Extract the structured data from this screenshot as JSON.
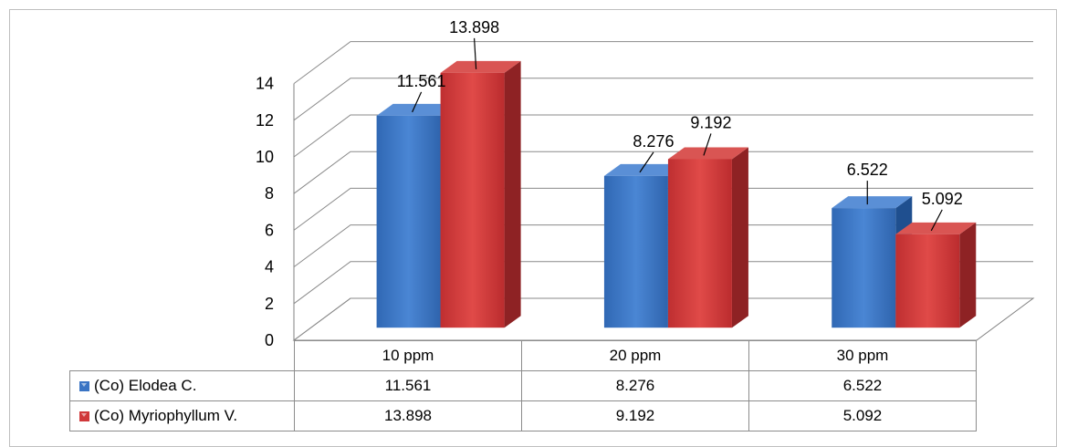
{
  "chart_data": {
    "type": "bar",
    "style": "3d-clustered-column-with-data-table",
    "categories": [
      "10 ppm",
      "20 ppm",
      "30 ppm"
    ],
    "series": [
      {
        "name": "(Co) Elodea C.",
        "values": [
          11.561,
          8.276,
          6.522
        ],
        "color": "#3a74c4"
      },
      {
        "name": "(Co) Myriophyllum V.",
        "values": [
          13.898,
          9.192,
          5.092
        ],
        "color": "#d0383a"
      }
    ],
    "data_labels": [
      [
        "11.561",
        "8.276",
        "6.522"
      ],
      [
        "13.898",
        "9.192",
        "5.092"
      ]
    ],
    "ylim": [
      0,
      14
    ],
    "yticks": [
      0,
      2,
      4,
      6,
      8,
      10,
      12,
      14
    ],
    "grid": true,
    "legend": "data-table-below",
    "title": "",
    "xlabel": "",
    "ylabel": ""
  }
}
